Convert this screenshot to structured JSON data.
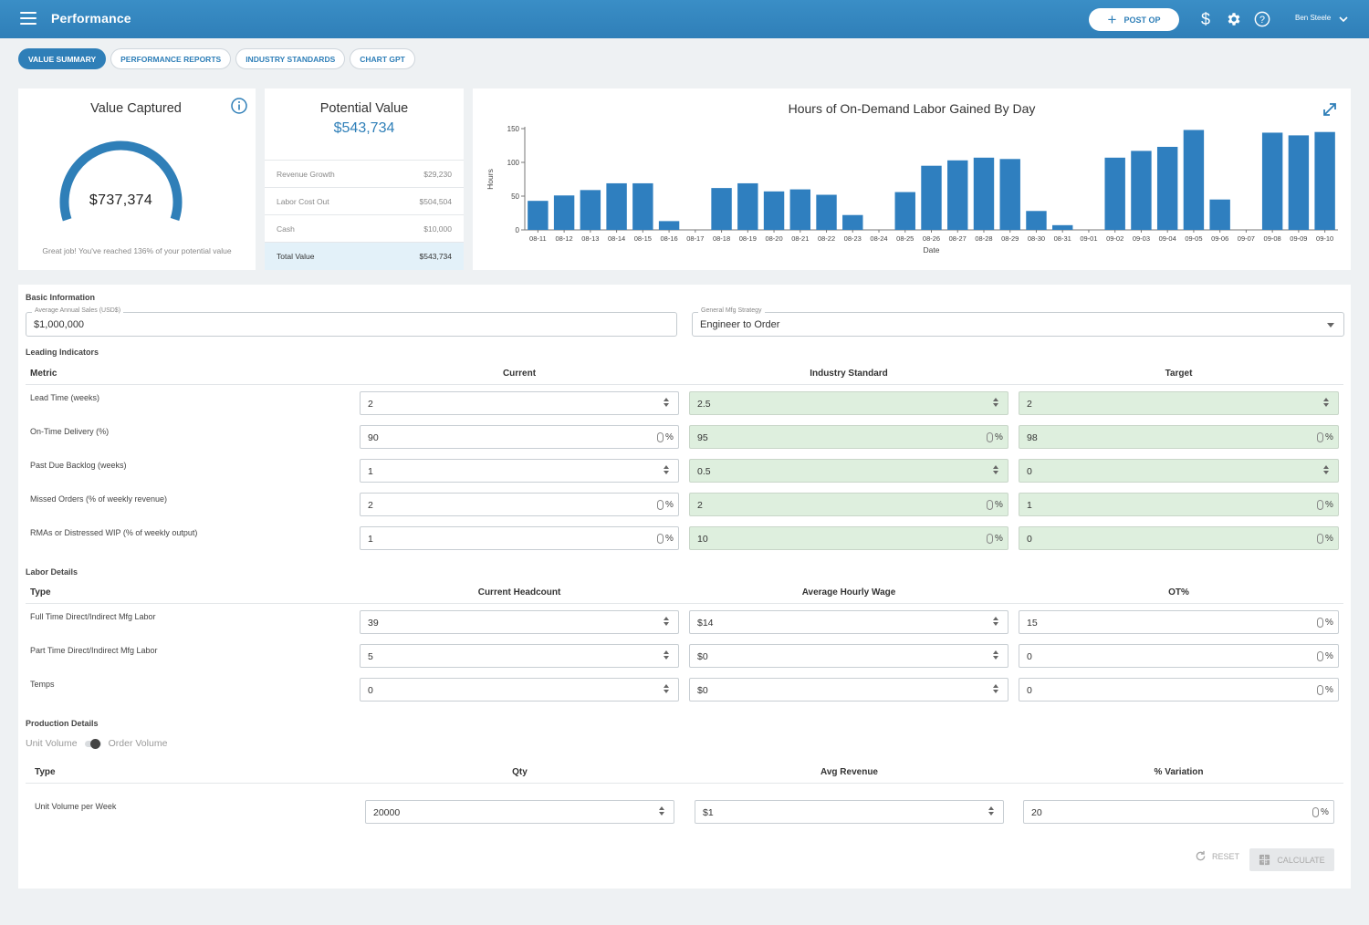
{
  "header": {
    "title": "Performance",
    "post_label": "POST OP",
    "user_name": "Ben Steele"
  },
  "tabs": [
    {
      "label": "VALUE SUMMARY",
      "active": true
    },
    {
      "label": "PERFORMANCE REPORTS",
      "active": false
    },
    {
      "label": "INDUSTRY STANDARDS",
      "active": false
    },
    {
      "label": "CHART GPT",
      "active": false
    }
  ],
  "value_captured": {
    "title": "Value Captured",
    "value": "$737,374",
    "message": "Great job! You've reached 136% of your potential value",
    "progress": 1.0
  },
  "potential_value": {
    "title": "Potential Value",
    "value": "$543,734",
    "rows": [
      {
        "label": "Revenue Growth",
        "value": "$29,230"
      },
      {
        "label": "Labor Cost Out",
        "value": "$504,504"
      },
      {
        "label": "Cash",
        "value": "$10,000"
      },
      {
        "label": "Total Value",
        "value": "$543,734"
      }
    ]
  },
  "chart_data": {
    "type": "bar",
    "title": "Hours of On-Demand Labor Gained By Day",
    "xlabel": "Date",
    "ylabel": "Hours",
    "ylim": [
      0,
      150
    ],
    "yticks": [
      0,
      50,
      100,
      150
    ],
    "categories": [
      "08-11",
      "08-12",
      "08-13",
      "08-14",
      "08-15",
      "08-16",
      "08-17",
      "08-18",
      "08-19",
      "08-20",
      "08-21",
      "08-22",
      "08-23",
      "08-24",
      "08-25",
      "08-26",
      "08-27",
      "08-28",
      "08-29",
      "08-30",
      "08-31",
      "09-01",
      "09-02",
      "09-03",
      "09-04",
      "09-05",
      "09-06",
      "09-07",
      "09-08",
      "09-09",
      "09-10"
    ],
    "values": [
      43,
      51,
      59,
      69,
      69,
      13,
      0,
      62,
      69,
      57,
      60,
      52,
      22,
      0,
      56,
      95,
      103,
      107,
      105,
      28,
      7,
      0,
      107,
      117,
      123,
      148,
      45,
      0,
      144,
      140,
      145
    ],
    "bar_color": "#2f7fbf",
    "grid": false
  },
  "basic_info": {
    "label": "Basic Information",
    "sales_legend": "Average Annual Sales (USD$)",
    "sales_value": "$1,000,000",
    "strategy_legend": "General Mfg Strategy",
    "strategy_value": "Engineer to Order"
  },
  "leading": {
    "label": "Leading Indicators",
    "headers": [
      "Metric",
      "Current",
      "Industry Standard",
      "Target"
    ],
    "rows": [
      {
        "label": "Lead Time (weeks)",
        "current": "2",
        "standard": "2.5",
        "target": "2",
        "pct": false
      },
      {
        "label": "On-Time Delivery (%)",
        "current": "90",
        "standard": "95",
        "target": "98",
        "pct": true
      },
      {
        "label": "Past Due Backlog (weeks)",
        "current": "1",
        "standard": "0.5",
        "target": "0",
        "pct": false
      },
      {
        "label": "Missed Orders (% of weekly revenue)",
        "current": "2",
        "standard": "2",
        "target": "1",
        "pct": true
      },
      {
        "label": "RMAs or Distressed WIP (% of weekly output)",
        "current": "1",
        "standard": "10",
        "target": "0",
        "pct": true
      }
    ]
  },
  "labor": {
    "label": "Labor Details",
    "headers": [
      "Type",
      "Current Headcount",
      "Average Hourly Wage",
      "OT%"
    ],
    "rows": [
      {
        "label": "Full Time Direct/Indirect Mfg Labor",
        "headcount": "39",
        "wage": "$14",
        "ot": "15"
      },
      {
        "label": "Part Time Direct/Indirect Mfg Labor",
        "headcount": "5",
        "wage": "$0",
        "ot": "0"
      },
      {
        "label": "Temps",
        "headcount": "0",
        "wage": "$0",
        "ot": "0"
      }
    ]
  },
  "production": {
    "label": "Production Details",
    "toggle_left": "Unit Volume",
    "toggle_right": "Order Volume",
    "headers": [
      "Type",
      "Qty",
      "Avg Revenue",
      "% Variation"
    ],
    "rows": [
      {
        "label": "Unit Volume per Week",
        "qty": "20000",
        "revenue": "$1",
        "variation": "20"
      }
    ]
  },
  "actions": {
    "reset_label": "RESET",
    "calculate_label": "CALCULATE"
  },
  "pct_sign": "%"
}
